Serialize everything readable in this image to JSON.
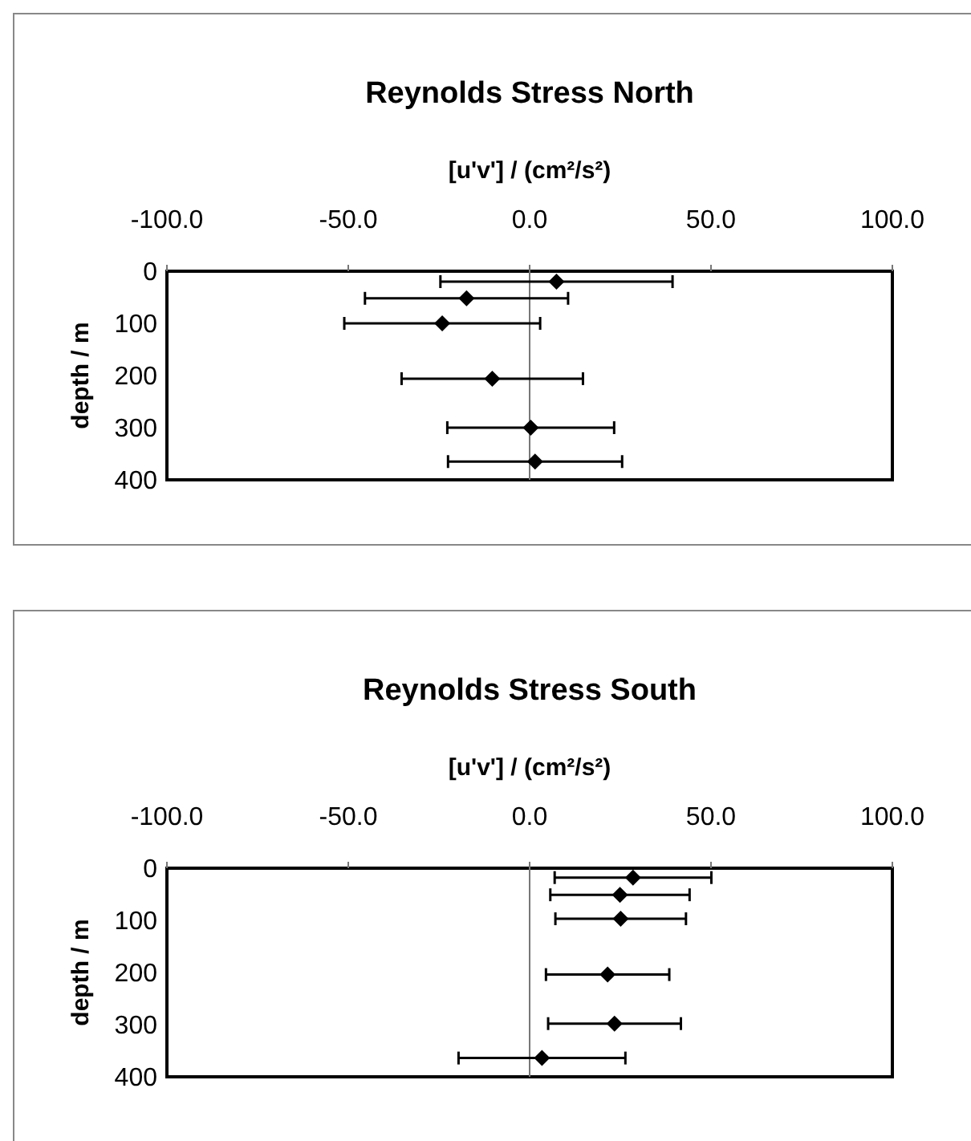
{
  "chart_data": [
    {
      "type": "scatter",
      "title": "Reynolds Stress North",
      "xlabel": "[u'v'] / (cm²/s²)",
      "ylabel": "depth / m",
      "x": [
        7.4,
        -17.4,
        -24.1,
        -10.3,
        0.3,
        1.5
      ],
      "values": [
        20,
        52,
        100,
        206,
        300,
        365
      ],
      "xerrors": [
        32,
        28,
        27,
        25,
        23,
        24
      ],
      "color": "#000000",
      "marker": "diamond",
      "xlim": [
        -100,
        100
      ],
      "xticks": [
        {
          "value": -100,
          "label": "-100.0"
        },
        {
          "value": -50,
          "label": "-50.0"
        },
        {
          "value": 0,
          "label": "0.0"
        },
        {
          "value": 50,
          "label": "50.0"
        },
        {
          "value": 100,
          "label": "100.0"
        }
      ],
      "ylim": [
        400,
        0
      ],
      "yticks": [
        0,
        100,
        200,
        300,
        400
      ],
      "legend": false
    },
    {
      "type": "scatter",
      "title": "Reynolds Stress South",
      "xlabel": "[u'v'] / (cm²/s²)",
      "ylabel": "depth / m",
      "x": [
        28.5,
        24.9,
        25.1,
        21.5,
        23.4,
        3.4
      ],
      "values": [
        18,
        51,
        97,
        204,
        298,
        364
      ],
      "xerrors": [
        21.6,
        19.2,
        18,
        17,
        18.3,
        23
      ],
      "color": "#000000",
      "marker": "diamond",
      "xlim": [
        -100,
        100
      ],
      "xticks": [
        {
          "value": -100,
          "label": "-100.0"
        },
        {
          "value": -50,
          "label": "-50.0"
        },
        {
          "value": 0,
          "label": "0.0"
        },
        {
          "value": 50,
          "label": "50.0"
        },
        {
          "value": 100,
          "label": "100.0"
        }
      ],
      "ylim": [
        400,
        0
      ],
      "yticks": [
        0,
        100,
        200,
        300,
        400
      ],
      "legend": false
    }
  ]
}
